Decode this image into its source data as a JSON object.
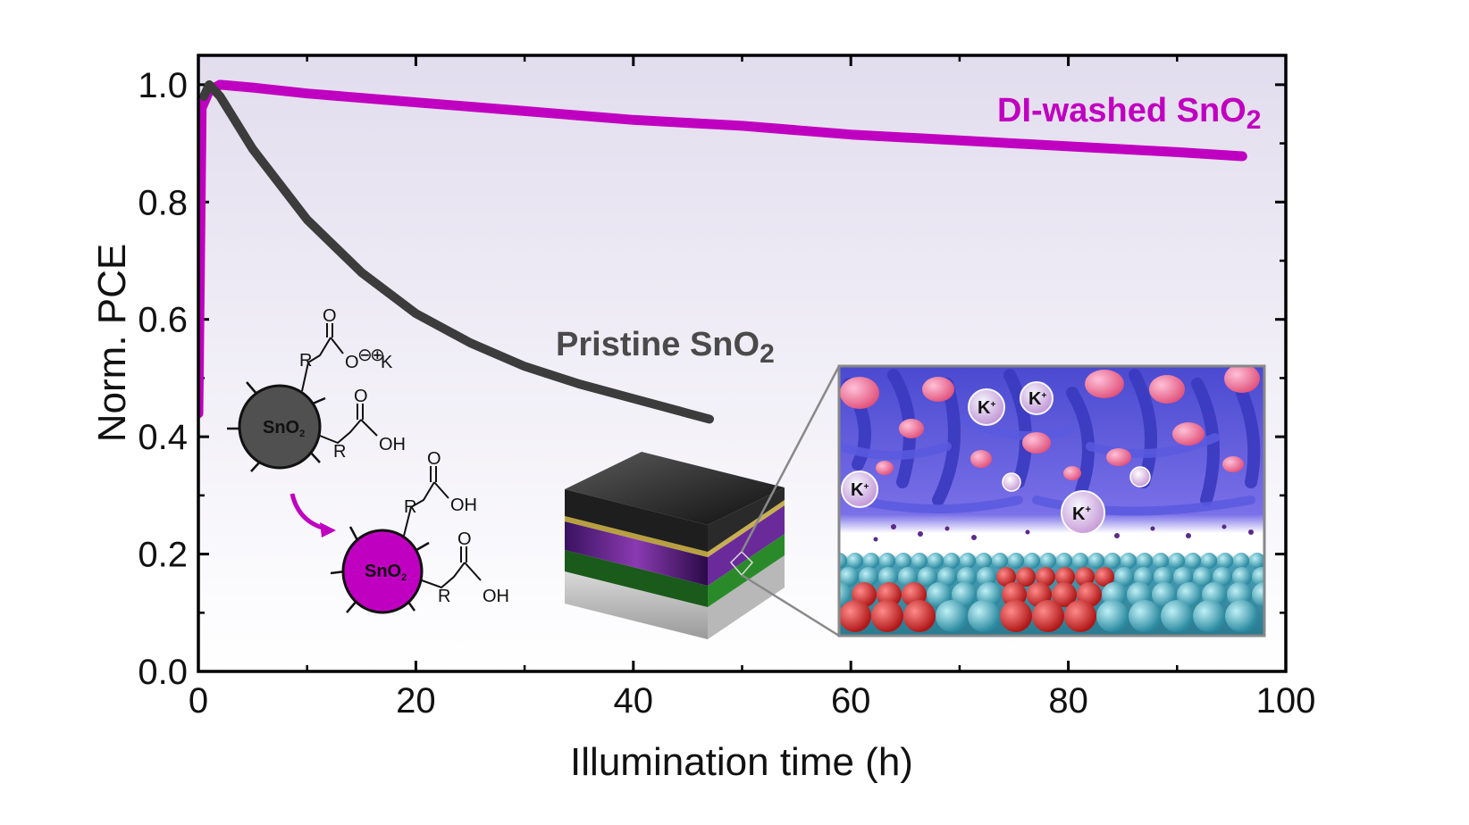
{
  "chart_data": {
    "type": "line",
    "xlabel": "Illumination time (h)",
    "ylabel": "Norm. PCE",
    "xlim": [
      0,
      100
    ],
    "ylim": [
      0,
      1.05
    ],
    "x_ticks": [
      "0",
      "20",
      "40",
      "60",
      "80",
      "100"
    ],
    "y_ticks": [
      "0.0",
      "0.2",
      "0.4",
      "0.6",
      "0.8",
      "1.0"
    ],
    "grid": false,
    "background": "lavender-to-white vertical gradient",
    "series": [
      {
        "name": "DI-washed SnO2",
        "label_main": "DI-washed SnO",
        "label_sub": "2",
        "color": "#c000c0",
        "x": [
          0,
          0.3,
          1,
          2,
          5,
          10,
          20,
          30,
          40,
          50,
          60,
          70,
          80,
          90,
          96
        ],
        "y": [
          0.44,
          0.96,
          0.99,
          1.0,
          0.995,
          0.985,
          0.97,
          0.955,
          0.94,
          0.93,
          0.915,
          0.905,
          0.895,
          0.885,
          0.878
        ]
      },
      {
        "name": "Pristine SnO2",
        "label_main": "Pristine SnO",
        "label_sub": "2",
        "color": "#3c3c3c",
        "x": [
          0.5,
          1,
          2,
          5,
          10,
          15,
          20,
          25,
          30,
          35,
          40,
          45,
          47
        ],
        "y": [
          0.98,
          1.0,
          0.98,
          0.89,
          0.77,
          0.68,
          0.61,
          0.56,
          0.52,
          0.49,
          0.465,
          0.44,
          0.43
        ]
      }
    ],
    "annotations": {
      "scheme_top": {
        "particle_label": "SnO",
        "particle_sub": "2",
        "r1": "R",
        "o_double_1": "O",
        "o_anion": "O",
        "minus": "⊖",
        "plus": "⊕",
        "k": "K",
        "r2": "R",
        "o_double_2": "O",
        "oh": "OH"
      },
      "scheme_bottom": {
        "particle_label": "SnO",
        "particle_sub": "2",
        "r1": "R",
        "o_double_1": "O",
        "oh1": "OH",
        "r2": "R",
        "o_double_2": "O",
        "oh2": "OH"
      },
      "inset_ion_label": "K",
      "inset_ion_charge": "+"
    }
  }
}
